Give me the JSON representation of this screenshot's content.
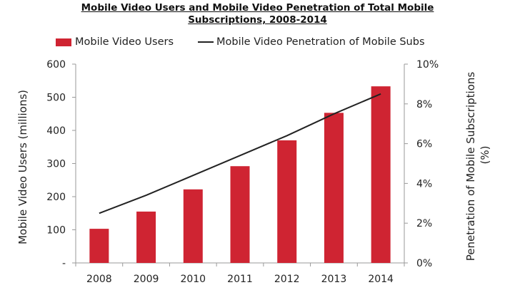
{
  "title_line1": "Mobile Video Users and Mobile Video Penetration of Total Mobile",
  "title_line2": "Subscriptions, 2008-2014",
  "chart_data": {
    "type": "bar",
    "title": "Mobile Video Users and Mobile Video Penetration of Total Mobile Subscriptions, 2008-2014",
    "categories": [
      "2008",
      "2009",
      "2010",
      "2011",
      "2012",
      "2013",
      "2014"
    ],
    "series": [
      {
        "name": "Mobile Video Users",
        "type": "bar",
        "axis": "left",
        "color": "#cf2432",
        "values": [
          103,
          155,
          222,
          292,
          370,
          453,
          533
        ]
      },
      {
        "name": "Mobile Video Penetration of Mobile Subs",
        "type": "line",
        "axis": "right",
        "color": "#222222",
        "values": [
          2.5,
          3.4,
          4.4,
          5.4,
          6.4,
          7.5,
          8.5
        ]
      }
    ],
    "ylabel": "Mobile Video Users (millions)",
    "y2label_line1": "Penetration of Mobile Subscriptions",
    "y2label_line2": "(%)",
    "ylim": [
      0,
      600
    ],
    "y2lim": [
      0,
      10
    ],
    "yticks": [
      "-",
      "100",
      "200",
      "300",
      "400",
      "500",
      "600"
    ],
    "y2ticks": [
      "0%",
      "2%",
      "4%",
      "6%",
      "8%",
      "10%"
    ],
    "legend_position": "top",
    "grid": false
  }
}
